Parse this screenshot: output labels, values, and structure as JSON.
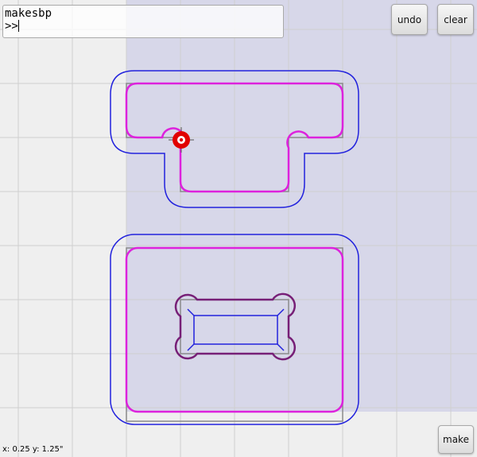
{
  "console": {
    "command": "makesbp",
    "prompt": ">>"
  },
  "toolbar": {
    "undo_label": "undo",
    "clear_label": "clear"
  },
  "footer": {
    "make_label": "make",
    "cursor_readout": "x: 0.25 y: 1.25\""
  },
  "colors": {
    "background": "#efefef",
    "selection_fill": "#d7d7e9",
    "grid": "#cfcfcf",
    "outer_toolpath": "#2222dd",
    "inner_toolpath": "#dd22dd",
    "pocket_toolpath": "#771f77",
    "source_outline": "#8a8a8a",
    "cursor_marker": "#e10000"
  },
  "icons": {
    "cursor": "crosshair-target-icon"
  }
}
